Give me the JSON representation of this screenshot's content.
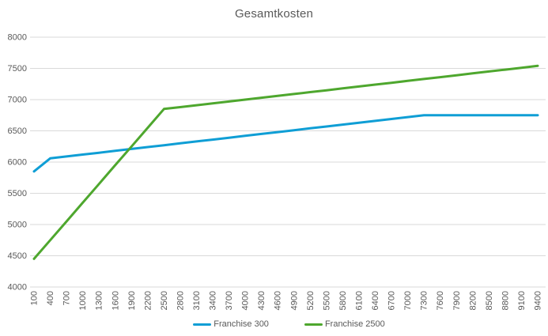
{
  "chart_data": {
    "type": "line",
    "title": "Gesamtkosten",
    "xlabel": "",
    "ylabel": "",
    "categories": [
      100,
      400,
      700,
      1000,
      1300,
      1600,
      1900,
      2200,
      2500,
      2800,
      3100,
      3400,
      3700,
      4000,
      4300,
      4600,
      4900,
      5200,
      5500,
      5800,
      6100,
      6400,
      6700,
      7000,
      7300,
      7600,
      7900,
      8200,
      8500,
      8800,
      9100,
      9400
    ],
    "series": [
      {
        "name": "Franchise 300",
        "color": "#0F9ED5",
        "values": [
          5850,
          6060,
          6090,
          6120,
          6150,
          6180,
          6210,
          6240,
          6270,
          6300,
          6330,
          6360,
          6390,
          6420,
          6450,
          6480,
          6510,
          6540,
          6570,
          6600,
          6630,
          6660,
          6690,
          6720,
          6750,
          6750,
          6750,
          6750,
          6750,
          6750,
          6750,
          6750
        ]
      },
      {
        "name": "Franchise 2500",
        "color": "#4EA72E",
        "values": [
          4450,
          4750,
          5050,
          5350,
          5650,
          5950,
          6250,
          6550,
          6850,
          6880,
          6910,
          6940,
          6970,
          7000,
          7030,
          7060,
          7090,
          7120,
          7150,
          7180,
          7210,
          7240,
          7270,
          7300,
          7330,
          7360,
          7390,
          7420,
          7450,
          7480,
          7510,
          7540
        ]
      }
    ],
    "ylim": [
      4000,
      8000
    ],
    "y_step": 500,
    "y_tick_labels": [
      "4000",
      "4500",
      "5000",
      "5500",
      "6000",
      "6500",
      "7000",
      "7500",
      "8000"
    ],
    "grid": true,
    "legend_position": "bottom",
    "colors": {
      "title": "#595959",
      "axis_labels": "#595959",
      "gridlines": "#D9D9D9",
      "background": "#FFFFFF"
    }
  }
}
